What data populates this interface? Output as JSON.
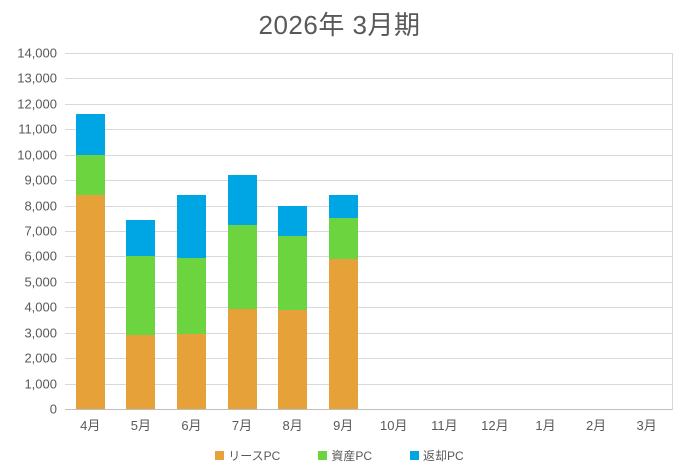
{
  "chart_data": {
    "type": "bar",
    "stacked": true,
    "title": "2026年 3月期",
    "categories": [
      "4月",
      "5月",
      "6月",
      "7月",
      "8月",
      "9月",
      "10月",
      "11月",
      "12月",
      "1月",
      "2月",
      "3月"
    ],
    "series": [
      {
        "name": "リースPC",
        "color": "#E7A139",
        "values": [
          8400,
          2900,
          2950,
          3950,
          3900,
          5900,
          0,
          0,
          0,
          0,
          0,
          0
        ]
      },
      {
        "name": "資産PC",
        "color": "#6BD43F",
        "values": [
          1600,
          3100,
          3000,
          3300,
          2900,
          1600,
          0,
          0,
          0,
          0,
          0,
          0
        ]
      },
      {
        "name": "返却PC",
        "color": "#00A5E3",
        "values": [
          1600,
          1450,
          2450,
          1950,
          1200,
          900,
          0,
          0,
          0,
          0,
          0,
          0
        ]
      }
    ],
    "ylim": [
      0,
      14000
    ],
    "y_tick_step": 1000,
    "y_tick_labels": [
      "0",
      "1,000",
      "2,000",
      "3,000",
      "4,000",
      "5,000",
      "6,000",
      "7,000",
      "8,000",
      "9,000",
      "10,000",
      "11,000",
      "12,000",
      "13,000",
      "14,000"
    ],
    "grid": true,
    "legend_position": "bottom"
  },
  "colors": {
    "text": "#595959",
    "gridline": "#D9D9D9",
    "axis_line": "#BFBFBF",
    "background": "#FFFFFF"
  }
}
